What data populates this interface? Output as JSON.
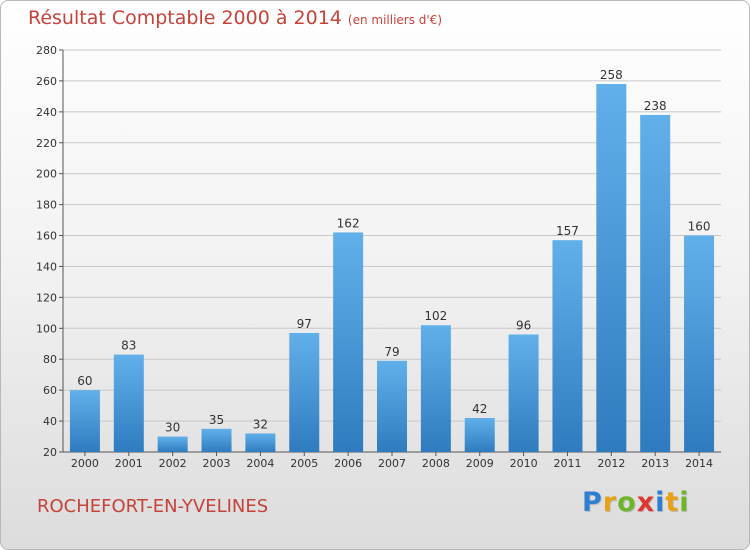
{
  "header": {
    "title": "Résultat Comptable 2000 à 2014",
    "subtitle": "(en milliers d'€)"
  },
  "footer": {
    "place": "ROCHEFORT-EN-YVELINES",
    "brand_letters": [
      {
        "ch": "P",
        "color": "#2f7fd1"
      },
      {
        "ch": "r",
        "color": "#e8a117"
      },
      {
        "ch": "o",
        "color": "#6fb52c"
      },
      {
        "ch": "x",
        "color": "#e0362d"
      },
      {
        "ch": "i",
        "color": "#2f7fd1"
      },
      {
        "ch": "t",
        "color": "#e8a117"
      },
      {
        "ch": "i",
        "color": "#6fb52c"
      }
    ]
  },
  "colors": {
    "bar_top": "#62b0ea",
    "bar_bottom": "#2e7cbf",
    "accent_text": "#c6423a"
  },
  "chart_data": {
    "type": "bar",
    "categories": [
      "2000",
      "2001",
      "2002",
      "2003",
      "2004",
      "2005",
      "2006",
      "2007",
      "2008",
      "2009",
      "2010",
      "2011",
      "2012",
      "2013",
      "2014"
    ],
    "values": [
      60,
      83,
      30,
      35,
      32,
      97,
      162,
      79,
      102,
      42,
      96,
      157,
      258,
      238,
      160
    ],
    "ylim": [
      20,
      280
    ],
    "yticks": [
      20,
      40,
      60,
      80,
      100,
      120,
      140,
      160,
      180,
      200,
      220,
      240,
      260,
      280
    ],
    "grid": true
  }
}
